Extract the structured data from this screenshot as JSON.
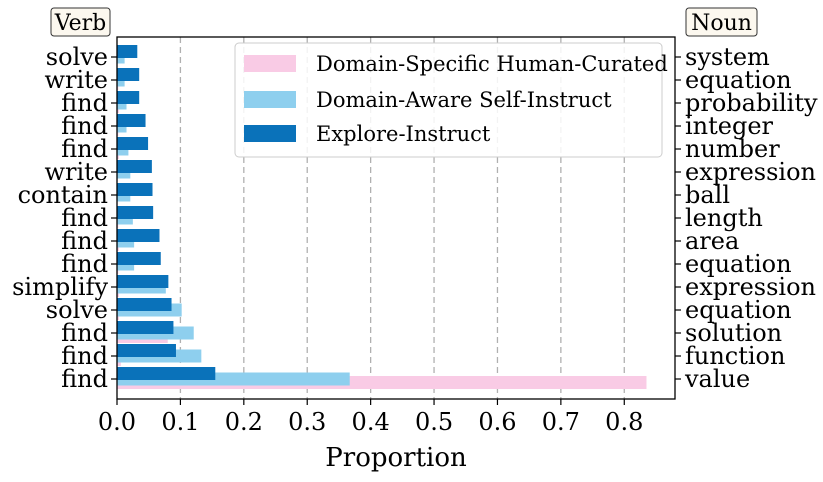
{
  "chart_data": {
    "type": "bar",
    "orientation": "horizontal",
    "title": "",
    "xlabel": "Proportion",
    "ylabel": "",
    "xlim": [
      0,
      0.88
    ],
    "x_ticks": [
      0.0,
      0.1,
      0.2,
      0.3,
      0.4,
      0.5,
      0.6,
      0.7,
      0.8
    ],
    "x_tick_labels": [
      "0.0",
      "0.1",
      "0.2",
      "0.3",
      "0.4",
      "0.5",
      "0.6",
      "0.7",
      "0.8"
    ],
    "grid": "vertical dashed",
    "legend_position": "top-right",
    "left_axis_title": "Verb",
    "right_axis_title": "Noun",
    "verbs": [
      "find",
      "find",
      "find",
      "solve",
      "simplify",
      "find",
      "find",
      "find",
      "contain",
      "write",
      "find",
      "find",
      "find",
      "write",
      "solve"
    ],
    "nouns": [
      "value",
      "function",
      "solution",
      "equation",
      "expression",
      "equation",
      "area",
      "length",
      "ball",
      "expression",
      "number",
      "integer",
      "probability",
      "equation",
      "system"
    ],
    "series": [
      {
        "name": "Domain-Specific Human-Curated",
        "color": "#f9cbe5",
        "values": [
          0.835,
          0.006,
          0.08,
          0.003,
          0.003,
          0.002,
          0.003,
          0.002,
          0.001,
          0.001,
          0.003,
          0.002,
          0.003,
          0.002,
          0.001
        ]
      },
      {
        "name": "Domain-Aware Self-Instruct",
        "color": "#8ecfee",
        "values": [
          0.367,
          0.133,
          0.121,
          0.102,
          0.077,
          0.027,
          0.027,
          0.025,
          0.021,
          0.021,
          0.018,
          0.015,
          0.015,
          0.012,
          0.012
        ]
      },
      {
        "name": "Explore-Instruct",
        "color": "#0a72ba",
        "values": [
          0.155,
          0.093,
          0.089,
          0.086,
          0.081,
          0.069,
          0.067,
          0.057,
          0.056,
          0.055,
          0.049,
          0.045,
          0.035,
          0.035,
          0.032
        ]
      }
    ]
  }
}
